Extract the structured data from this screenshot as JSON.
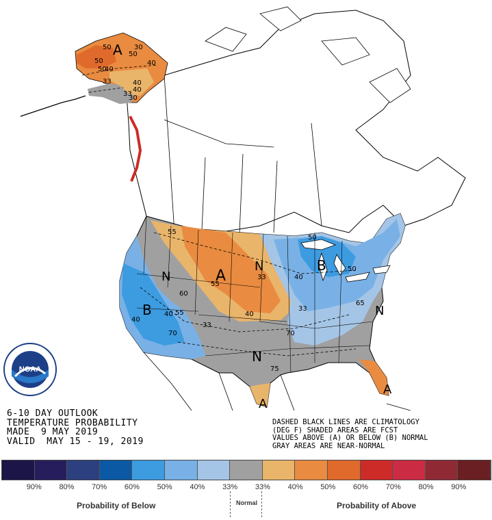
{
  "title": {
    "line1": "6-10 DAY OUTLOOK",
    "line2": "TEMPERATURE PROBABILITY",
    "line3": "MADE  9 MAY 2019",
    "line4": "VALID  MAY 15 - 19, 2019"
  },
  "note": {
    "line1": "DASHED BLACK LINES ARE CLIMATOLOGY",
    "line2": "(DEG F) SHADED AREAS ARE FCST",
    "line3": "VALUES ABOVE (A) OR BELOW (B) NORMAL",
    "line4": "GRAY AREAS ARE NEAR-NORMAL"
  },
  "logo": {
    "text": "NOAA",
    "ring_text": "NATIONAL OCEANIC AND ATMOSPHERIC ADMINISTRATION · U.S. DEPARTMENT OF COMMERCE"
  },
  "region_letters": {
    "alaska_a": "A",
    "plains_a": "A",
    "nd_n": "N",
    "west_n": "N",
    "west_b": "B",
    "greatlakes_b": "B",
    "south_n": "N",
    "east_n": "N",
    "texas_a": "A",
    "florida_a": "A"
  },
  "map_labels": {
    "ak_50a": "50",
    "ak_50b": "50",
    "ak_50c": "50",
    "ak_30": "30",
    "ak_40a": "40",
    "ak_40b": "40",
    "ak_40c": "40",
    "ak_40d": "40",
    "ak_33a": "33",
    "ak_33b": "33",
    "ak_30b": "30",
    "ak_50d": "50",
    "mt_55": "55",
    "id_60": "60",
    "nv_40": "40",
    "ut_55": "55",
    "wy_55": "55",
    "nd_33": "33",
    "ne_40": "40",
    "co_33": "33",
    "ca_40": "40",
    "az_70": "70",
    "ok_70": "70",
    "tx_75": "75",
    "mo_33": "33",
    "mi_50": "50",
    "mi_40": "40",
    "ny_50": "50",
    "va_65": "65"
  },
  "legend": {
    "colors": [
      "#1b1548",
      "#261e5c",
      "#2c3f7e",
      "#0b59a4",
      "#3d9be0",
      "#79b1e6",
      "#a5c5e6",
      "#a0a0a0",
      "#e9b56b",
      "#e98b40",
      "#e06a2c",
      "#cc2b28",
      "#cc2b44",
      "#8f2a35",
      "#6a1f22"
    ],
    "ticks": [
      "90%",
      "80%",
      "70%",
      "60%",
      "50%",
      "40%",
      "33%",
      "33%",
      "40%",
      "50%",
      "60%",
      "70%",
      "80%",
      "90%"
    ],
    "below_label": "Probability of Below",
    "normal_label": "Normal",
    "above_label": "Probability of Above"
  }
}
